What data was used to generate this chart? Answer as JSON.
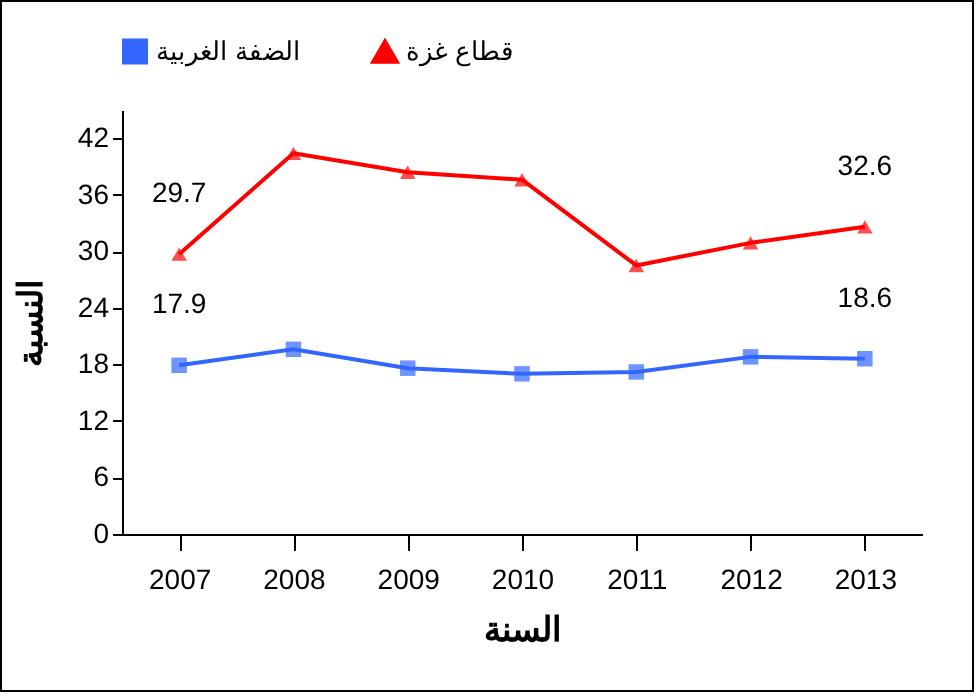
{
  "chart_data": {
    "type": "line",
    "xlabel": "السنة",
    "ylabel": "النسبة",
    "categories": [
      "2007",
      "2008",
      "2009",
      "2010",
      "2011",
      "2012",
      "2013"
    ],
    "series": [
      {
        "name": "الضفة الغربية",
        "color": "#3366ff",
        "marker": "square",
        "values": [
          17.9,
          19.6,
          17.6,
          17.0,
          17.2,
          18.8,
          18.6
        ],
        "value_labels": [
          "17.9",
          null,
          null,
          null,
          null,
          null,
          "18.6"
        ]
      },
      {
        "name": "قطاع غزة",
        "color": "#ff0000",
        "marker": "triangle",
        "values": [
          29.7,
          40.4,
          38.4,
          37.6,
          28.5,
          30.9,
          32.6
        ],
        "value_labels": [
          "29.7",
          null,
          null,
          null,
          null,
          null,
          "32.6"
        ]
      }
    ],
    "ylim": [
      0,
      45
    ],
    "yticks": [
      0,
      6,
      12,
      18,
      24,
      30,
      36,
      42
    ],
    "grid": false,
    "legend": "top"
  }
}
